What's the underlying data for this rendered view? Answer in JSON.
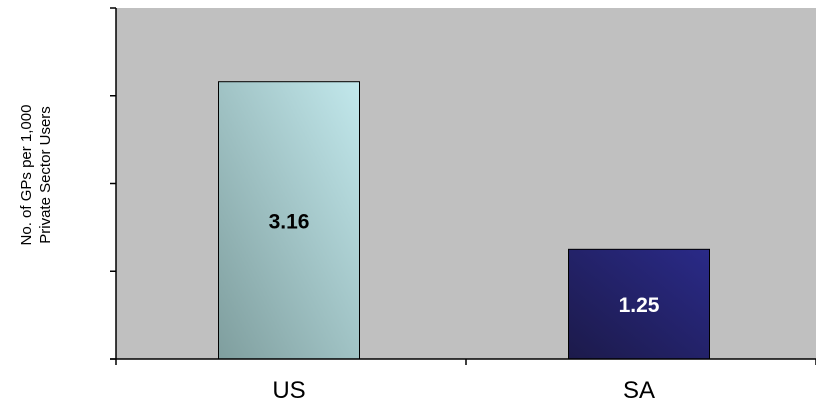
{
  "chart_data": {
    "type": "bar",
    "title": "",
    "xlabel": "",
    "ylabel": "No. of GPs per 1,000 Private Sector Users",
    "ylabel_lines": [
      "No. of GPs per 1,000",
      "Private Sector Users"
    ],
    "categories": [
      "US",
      "SA"
    ],
    "values": [
      3.16,
      1.25
    ],
    "data_labels": [
      "3.16",
      "1.25"
    ],
    "ylim": [
      0,
      4
    ],
    "y_major_step": 1,
    "y_tick_labels_shown": false,
    "grid": false,
    "legend": "none",
    "colors": {
      "plot_background": "#c0c0c0",
      "us_bar_gradient": [
        "#7f9e9e",
        "#c2e8ec"
      ],
      "sa_bar_gradient": [
        "#1c1a4a",
        "#2a2a88"
      ],
      "us_label_color": "#000000",
      "sa_label_color": "#ffffff",
      "axis_color": "#000000"
    }
  }
}
